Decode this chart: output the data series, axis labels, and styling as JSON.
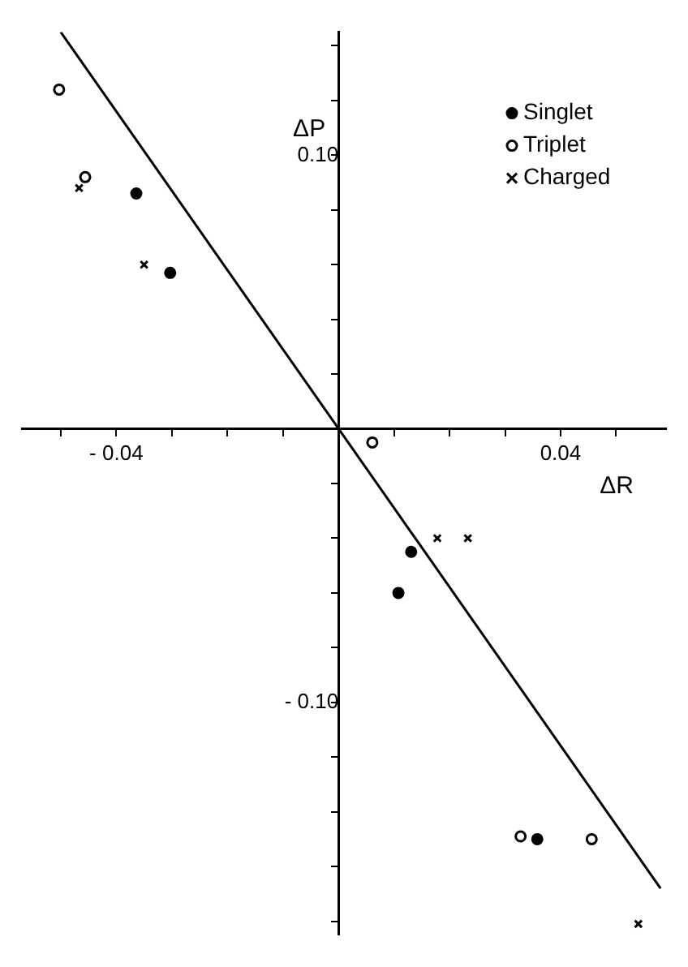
{
  "chart_data": {
    "type": "scatter",
    "xlabel": "ΔR",
    "ylabel": "ΔP",
    "xlim": [
      -0.057,
      0.059
    ],
    "ylim": [
      -0.185,
      0.145
    ],
    "xticks": [
      {
        "value": -0.05,
        "label": null
      },
      {
        "value": -0.04,
        "label": "- 0.04"
      },
      {
        "value": -0.03,
        "label": null
      },
      {
        "value": -0.02,
        "label": null
      },
      {
        "value": -0.01,
        "label": null
      },
      {
        "value": 0.01,
        "label": null
      },
      {
        "value": 0.02,
        "label": null
      },
      {
        "value": 0.03,
        "label": null
      },
      {
        "value": 0.04,
        "label": "0.04"
      },
      {
        "value": 0.05,
        "label": null
      }
    ],
    "yticks": [
      {
        "value": -0.18,
        "label": null
      },
      {
        "value": -0.16,
        "label": null
      },
      {
        "value": -0.14,
        "label": null
      },
      {
        "value": -0.12,
        "label": null
      },
      {
        "value": -0.1,
        "label": "- 0.10"
      },
      {
        "value": -0.08,
        "label": null
      },
      {
        "value": -0.06,
        "label": null
      },
      {
        "value": -0.04,
        "label": null
      },
      {
        "value": -0.02,
        "label": null
      },
      {
        "value": 0.02,
        "label": null
      },
      {
        "value": 0.04,
        "label": null
      },
      {
        "value": 0.06,
        "label": null
      },
      {
        "value": 0.08,
        "label": null
      },
      {
        "value": 0.1,
        "label": "0.10"
      },
      {
        "value": 0.12,
        "label": null
      },
      {
        "value": 0.14,
        "label": null
      }
    ],
    "grid": false,
    "legend": "top right",
    "series": [
      {
        "name": "Singlet",
        "color": "#000000",
        "marker": "circle",
        "x": [
          -0.0364,
          -0.0303,
          0.0131,
          0.0108,
          0.0358
        ],
        "values": [
          0.086,
          0.057,
          -0.045,
          -0.06,
          -0.15
        ]
      },
      {
        "name": "Triplet",
        "color": "#ffffff",
        "marker": "circle",
        "x": [
          -0.0503,
          -0.0456,
          0.0061,
          0.0328,
          0.0456
        ],
        "values": [
          0.124,
          0.092,
          -0.005,
          -0.149,
          -0.15
        ]
      },
      {
        "name": "Charged",
        "color": "#000000",
        "marker": "cross",
        "x": [
          -0.0467,
          -0.035,
          0.0178,
          0.0233,
          0.054
        ],
        "values": [
          0.088,
          0.06,
          -0.04,
          -0.04,
          -0.181
        ]
      },
      {
        "type": "line",
        "color": "#000000",
        "x": [
          -0.05,
          0.058
        ],
        "values": [
          0.145,
          -0.168
        ]
      }
    ]
  }
}
